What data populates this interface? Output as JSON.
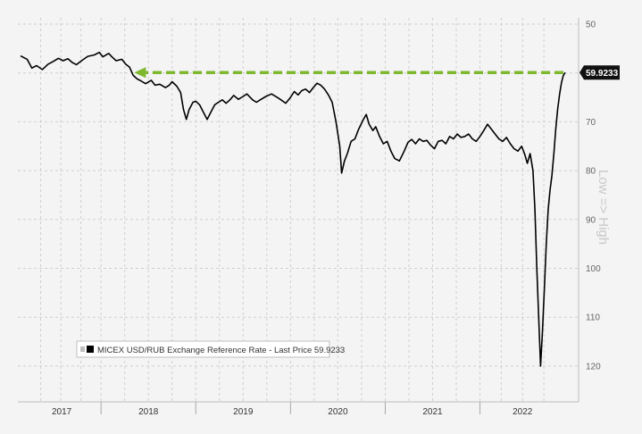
{
  "chart_data": {
    "type": "line",
    "title": "",
    "y_axis_label": "Low => High",
    "y_axis_inverted": true,
    "ylim": [
      50,
      125
    ],
    "y_ticks": [
      50,
      60,
      70,
      80,
      90,
      100,
      110,
      120
    ],
    "x_range": [
      2016.55,
      2022.3
    ],
    "x_tick_labels": [
      {
        "label": "2017",
        "start": 2016.55,
        "end": 2017.4
      },
      {
        "label": "2018",
        "start": 2017.4,
        "end": 2018.4
      },
      {
        "label": "2019",
        "start": 2018.4,
        "end": 2019.4
      },
      {
        "label": "2020",
        "start": 2019.4,
        "end": 2020.4
      },
      {
        "label": "2021",
        "start": 2020.4,
        "end": 2021.4
      },
      {
        "label": "2022",
        "start": 2021.4,
        "end": 2022.3
      }
    ],
    "grid": true,
    "legend_position": "bottom-left",
    "series": [
      {
        "name": "MICEX USD/RUB Exchange Reference Rate - Last Price 59.9233",
        "color": "#000000",
        "points": [
          [
            2016.55,
            56.5
          ],
          [
            2016.62,
            57.2
          ],
          [
            2016.67,
            59.0
          ],
          [
            2016.72,
            58.5
          ],
          [
            2016.78,
            59.3
          ],
          [
            2016.84,
            58.2
          ],
          [
            2016.9,
            57.6
          ],
          [
            2016.95,
            57.0
          ],
          [
            2017.0,
            57.5
          ],
          [
            2017.05,
            57.1
          ],
          [
            2017.1,
            57.9
          ],
          [
            2017.14,
            58.3
          ],
          [
            2017.2,
            57.4
          ],
          [
            2017.26,
            56.6
          ],
          [
            2017.33,
            56.3
          ],
          [
            2017.38,
            55.8
          ],
          [
            2017.42,
            56.7
          ],
          [
            2017.48,
            56.0
          ],
          [
            2017.52,
            56.8
          ],
          [
            2017.56,
            57.5
          ],
          [
            2017.62,
            57.2
          ],
          [
            2017.66,
            58.2
          ],
          [
            2017.7,
            58.8
          ],
          [
            2017.74,
            60.5
          ],
          [
            2017.78,
            61.2
          ],
          [
            2017.82,
            61.6
          ],
          [
            2017.87,
            62.2
          ],
          [
            2017.93,
            61.5
          ],
          [
            2017.97,
            62.5
          ],
          [
            2018.02,
            62.3
          ],
          [
            2018.08,
            63.0
          ],
          [
            2018.12,
            62.5
          ],
          [
            2018.15,
            61.8
          ],
          [
            2018.2,
            62.7
          ],
          [
            2018.24,
            64.0
          ],
          [
            2018.27,
            67.5
          ],
          [
            2018.3,
            69.5
          ],
          [
            2018.33,
            67.5
          ],
          [
            2018.37,
            66.0
          ],
          [
            2018.4,
            65.8
          ],
          [
            2018.44,
            66.5
          ],
          [
            2018.48,
            68.0
          ],
          [
            2018.52,
            69.5
          ],
          [
            2018.56,
            68.0
          ],
          [
            2018.6,
            66.5
          ],
          [
            2018.64,
            66.0
          ],
          [
            2018.68,
            65.5
          ],
          [
            2018.72,
            66.2
          ],
          [
            2018.76,
            65.5
          ],
          [
            2018.8,
            64.6
          ],
          [
            2018.85,
            65.4
          ],
          [
            2018.9,
            64.8
          ],
          [
            2018.94,
            64.3
          ],
          [
            2019.0,
            65.5
          ],
          [
            2019.04,
            66.0
          ],
          [
            2019.08,
            65.5
          ],
          [
            2019.14,
            64.8
          ],
          [
            2019.2,
            64.3
          ],
          [
            2019.26,
            65.0
          ],
          [
            2019.3,
            65.5
          ],
          [
            2019.35,
            66.2
          ],
          [
            2019.4,
            65.0
          ],
          [
            2019.44,
            63.8
          ],
          [
            2019.48,
            64.5
          ],
          [
            2019.52,
            63.6
          ],
          [
            2019.56,
            63.3
          ],
          [
            2019.6,
            64.0
          ],
          [
            2019.64,
            63.0
          ],
          [
            2019.68,
            62.1
          ],
          [
            2019.72,
            62.5
          ],
          [
            2019.76,
            63.3
          ],
          [
            2019.8,
            64.5
          ],
          [
            2019.84,
            66.0
          ],
          [
            2019.88,
            70.0
          ],
          [
            2019.92,
            75.0
          ],
          [
            2019.94,
            80.5
          ],
          [
            2019.97,
            78.0
          ],
          [
            2020.0,
            76.5
          ],
          [
            2020.04,
            74.0
          ],
          [
            2020.08,
            73.5
          ],
          [
            2020.12,
            71.5
          ],
          [
            2020.17,
            69.5
          ],
          [
            2020.2,
            68.5
          ],
          [
            2020.23,
            70.5
          ],
          [
            2020.27,
            71.8
          ],
          [
            2020.3,
            71.0
          ],
          [
            2020.34,
            73.0
          ],
          [
            2020.38,
            74.5
          ],
          [
            2020.42,
            74.0
          ],
          [
            2020.46,
            76.0
          ],
          [
            2020.5,
            77.5
          ],
          [
            2020.55,
            78.0
          ],
          [
            2020.6,
            76.0
          ],
          [
            2020.64,
            74.2
          ],
          [
            2020.68,
            73.6
          ],
          [
            2020.72,
            74.5
          ],
          [
            2020.76,
            73.5
          ],
          [
            2020.8,
            74.0
          ],
          [
            2020.84,
            73.8
          ],
          [
            2020.88,
            74.8
          ],
          [
            2020.92,
            75.5
          ],
          [
            2020.96,
            74.0
          ],
          [
            2021.0,
            73.8
          ],
          [
            2021.04,
            74.5
          ],
          [
            2021.08,
            73.0
          ],
          [
            2021.12,
            73.5
          ],
          [
            2021.16,
            72.5
          ],
          [
            2021.2,
            73.2
          ],
          [
            2021.24,
            73.0
          ],
          [
            2021.28,
            72.5
          ],
          [
            2021.32,
            73.5
          ],
          [
            2021.36,
            74.0
          ],
          [
            2021.4,
            73.0
          ],
          [
            2021.44,
            71.8
          ],
          [
            2021.48,
            70.5
          ],
          [
            2021.52,
            71.5
          ],
          [
            2021.56,
            72.5
          ],
          [
            2021.6,
            73.5
          ],
          [
            2021.64,
            74.0
          ],
          [
            2021.68,
            73.2
          ],
          [
            2021.72,
            74.5
          ],
          [
            2021.76,
            75.5
          ],
          [
            2021.8,
            76.0
          ],
          [
            2021.84,
            75.0
          ],
          [
            2021.87,
            76.5
          ],
          [
            2021.9,
            78.5
          ],
          [
            2021.93,
            76.5
          ],
          [
            2021.96,
            80.0
          ],
          [
            2021.98,
            88.0
          ],
          [
            2022.0,
            100.0
          ],
          [
            2022.02,
            110.0
          ],
          [
            2022.04,
            120.0
          ],
          [
            2022.06,
            113.0
          ],
          [
            2022.08,
            104.0
          ],
          [
            2022.1,
            95.0
          ],
          [
            2022.12,
            88.0
          ],
          [
            2022.14,
            84.0
          ],
          [
            2022.16,
            81.0
          ],
          [
            2022.18,
            76.5
          ],
          [
            2022.2,
            71.5
          ],
          [
            2022.22,
            67.5
          ],
          [
            2022.24,
            64.5
          ],
          [
            2022.26,
            62.0
          ],
          [
            2022.28,
            60.5
          ],
          [
            2022.3,
            59.9233
          ]
        ]
      }
    ],
    "annotations": {
      "last_value_label": "59.9233",
      "reference_arrow": {
        "from_x": 2022.3,
        "to_x": 2017.75,
        "y": 59.9233,
        "color": "#7db82f",
        "style": "dashed"
      }
    }
  }
}
